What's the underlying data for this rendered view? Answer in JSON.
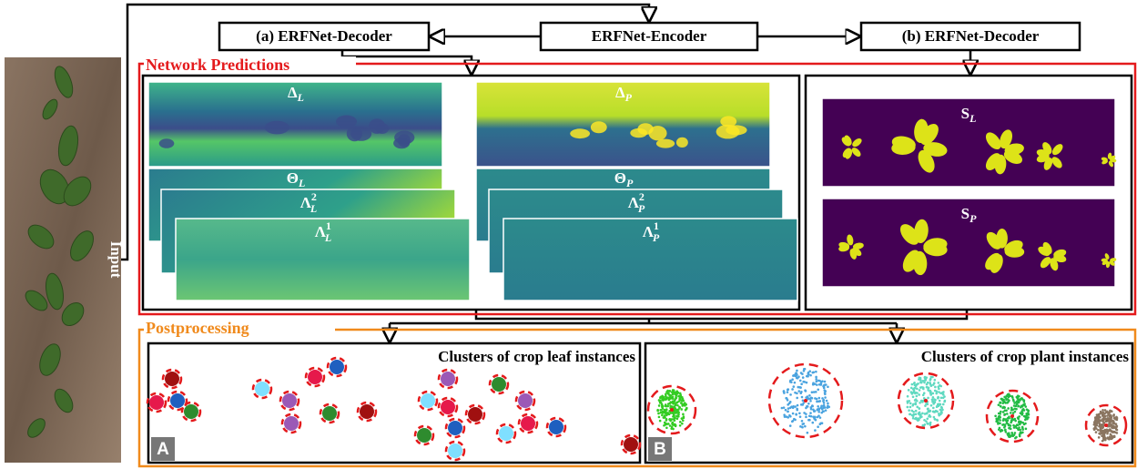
{
  "encoder": "ERFNet-Encoder",
  "decoders": [
    "(a) ERFNet-Decoder",
    "(b) ERFNet-Decoder"
  ],
  "input_label": "Input",
  "sections": {
    "network_predictions": "Network Predictions",
    "postprocessing": "Postprocessing"
  },
  "maps": {
    "delta_L": {
      "symbol": "Δ",
      "sub": "L"
    },
    "delta_P": {
      "symbol": "Δ",
      "sub": "P"
    },
    "theta_L": {
      "symbol": "Θ",
      "sub": "L"
    },
    "lambda2_L": {
      "symbol": "Λ",
      "sup": "2",
      "sub": "L"
    },
    "lambda1_L": {
      "symbol": "Λ",
      "sup": "1",
      "sub": "L"
    },
    "theta_P": {
      "symbol": "Θ",
      "sub": "P"
    },
    "lambda2_P": {
      "symbol": "Λ",
      "sup": "2",
      "sub": "P"
    },
    "lambda1_P": {
      "symbol": "Λ",
      "sup": "1",
      "sub": "P"
    },
    "S_L": {
      "symbol": "S",
      "sub": "L"
    },
    "S_P": {
      "symbol": "S",
      "sub": "P"
    }
  },
  "panels": [
    {
      "title": "Clusters of crop leaf instances",
      "tag": "A"
    },
    {
      "title": "Clusters of crop plant instances",
      "tag": "B"
    }
  ]
}
